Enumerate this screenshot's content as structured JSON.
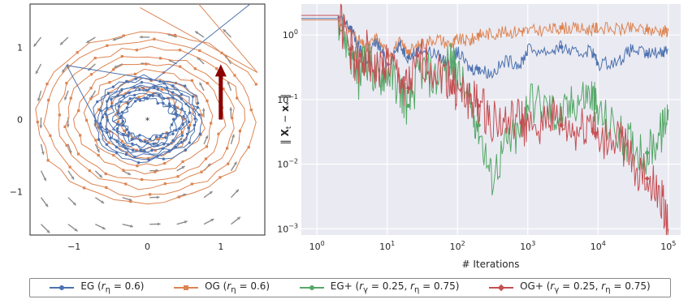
{
  "colors": {
    "EG": "#4c72b0",
    "OG": "#dd8452",
    "EGp": "#55a868",
    "OGp": "#c44e52",
    "arrow": "#8b0000",
    "field": "#8c8c8c",
    "grid": "#ebebeb"
  },
  "legend": [
    {
      "key": "EG",
      "label": "EG (rη = 0.6)",
      "color": "#4c72b0",
      "marker": "circle"
    },
    {
      "key": "OG",
      "label": "OG (rη = 0.6)",
      "color": "#dd8452",
      "marker": "square"
    },
    {
      "key": "EGp",
      "label": "EG+ (rγ = 0.25, rη = 0.75)",
      "color": "#55a868",
      "marker": "circle"
    },
    {
      "key": "OGp",
      "label": "OG+ (rγ = 0.25, rη = 0.75)",
      "color": "#c44e52",
      "marker": "diamond"
    }
  ],
  "chart_data": [
    {
      "type": "scatter",
      "title": "",
      "xlabel": "",
      "ylabel": "",
      "xlim": [
        -1.6,
        1.6
      ],
      "ylim": [
        -1.6,
        1.6
      ],
      "xticks": [
        "−1",
        "0",
        "1"
      ],
      "yticks": [
        "−1",
        "0",
        "1"
      ],
      "grid": false,
      "solution_marker": {
        "x": 0,
        "y": 0,
        "symbol": "*",
        "color": "red"
      },
      "series": [
        {
          "name": "EG",
          "shape": "spiral",
          "r_start": 0.72,
          "r_end": 0.55
        },
        {
          "name": "OG",
          "shape": "spiral",
          "r_start": 1.5,
          "r_end": 0.35
        }
      ],
      "arrow": {
        "x": 1,
        "y_from": 0,
        "y_to": 0.72,
        "color": "#8b0000"
      }
    },
    {
      "type": "line",
      "title": "",
      "xlabel": "# Iterations",
      "ylabel": "‖ Xt − x* ‖",
      "xscale": "log",
      "yscale": "log",
      "xlim": [
        0.6,
        150000
      ],
      "ylim": [
        0.0008,
        3
      ],
      "xtick_labels": [
        "10^0",
        "10^1",
        "10^2",
        "10^3",
        "10^4",
        "10^5"
      ],
      "ytick_labels": [
        "10^-3",
        "10^-2",
        "10^-1",
        "10^0"
      ],
      "grid": true,
      "series": [
        {
          "name": "EG",
          "x": [
            0.6,
            1,
            2,
            3,
            4,
            5,
            7,
            10,
            15,
            20,
            30,
            50,
            80,
            100,
            150,
            200,
            300,
            500,
            800,
            1000,
            2000,
            3000,
            5000,
            8000,
            10000,
            20000,
            30000,
            50000,
            80000,
            100000
          ],
          "y": [
            1.8,
            1.8,
            1.8,
            1.3,
            0.6,
            0.4,
            0.8,
            0.35,
            0.7,
            0.45,
            0.6,
            0.5,
            0.35,
            0.55,
            0.3,
            0.3,
            0.25,
            0.4,
            0.35,
            0.6,
            0.55,
            0.65,
            0.5,
            0.6,
            0.35,
            0.4,
            0.6,
            0.5,
            0.55,
            0.6
          ]
        },
        {
          "name": "OG",
          "x": [
            0.6,
            1,
            2,
            3,
            4,
            5,
            7,
            10,
            15,
            20,
            30,
            50,
            80,
            100,
            150,
            200,
            300,
            500,
            800,
            1000,
            2000,
            3000,
            5000,
            8000,
            10000,
            20000,
            30000,
            50000,
            80000,
            100000
          ],
          "y": [
            1.7,
            1.7,
            1.7,
            1.2,
            0.8,
            0.6,
            0.9,
            0.5,
            0.75,
            0.55,
            0.7,
            0.9,
            0.7,
            0.85,
            0.8,
            1.0,
            1.05,
            1.1,
            1.15,
            1.15,
            1.2,
            1.3,
            1.25,
            1.2,
            1.3,
            1.2,
            1.25,
            1.2,
            1.15,
            1.15
          ]
        },
        {
          "name": "EG+",
          "x": [
            0.6,
            1,
            2,
            3,
            4,
            5,
            7,
            10,
            15,
            20,
            30,
            50,
            80,
            100,
            150,
            200,
            300,
            500,
            800,
            1000,
            2000,
            3000,
            5000,
            8000,
            10000,
            20000,
            30000,
            50000,
            80000,
            100000
          ],
          "y": [
            2.0,
            2.0,
            2.0,
            0.5,
            0.2,
            0.5,
            0.2,
            0.3,
            0.15,
            0.08,
            0.3,
            0.2,
            0.4,
            0.25,
            0.08,
            0.04,
            0.006,
            0.02,
            0.03,
            0.1,
            0.07,
            0.05,
            0.1,
            0.12,
            0.06,
            0.03,
            0.02,
            0.015,
            0.03,
            0.07
          ]
        },
        {
          "name": "OG+",
          "x": [
            0.6,
            1,
            2,
            3,
            4,
            5,
            7,
            10,
            15,
            20,
            30,
            50,
            80,
            100,
            150,
            200,
            300,
            500,
            800,
            1000,
            2000,
            3000,
            5000,
            8000,
            10000,
            20000,
            30000,
            50000,
            80000,
            100000
          ],
          "y": [
            2.0,
            2.0,
            2.0,
            0.6,
            0.3,
            0.6,
            0.25,
            0.4,
            0.2,
            0.15,
            0.4,
            0.3,
            0.2,
            0.12,
            0.1,
            0.08,
            0.05,
            0.04,
            0.05,
            0.03,
            0.06,
            0.04,
            0.03,
            0.05,
            0.02,
            0.03,
            0.01,
            0.006,
            0.003,
            0.001
          ]
        }
      ]
    }
  ]
}
